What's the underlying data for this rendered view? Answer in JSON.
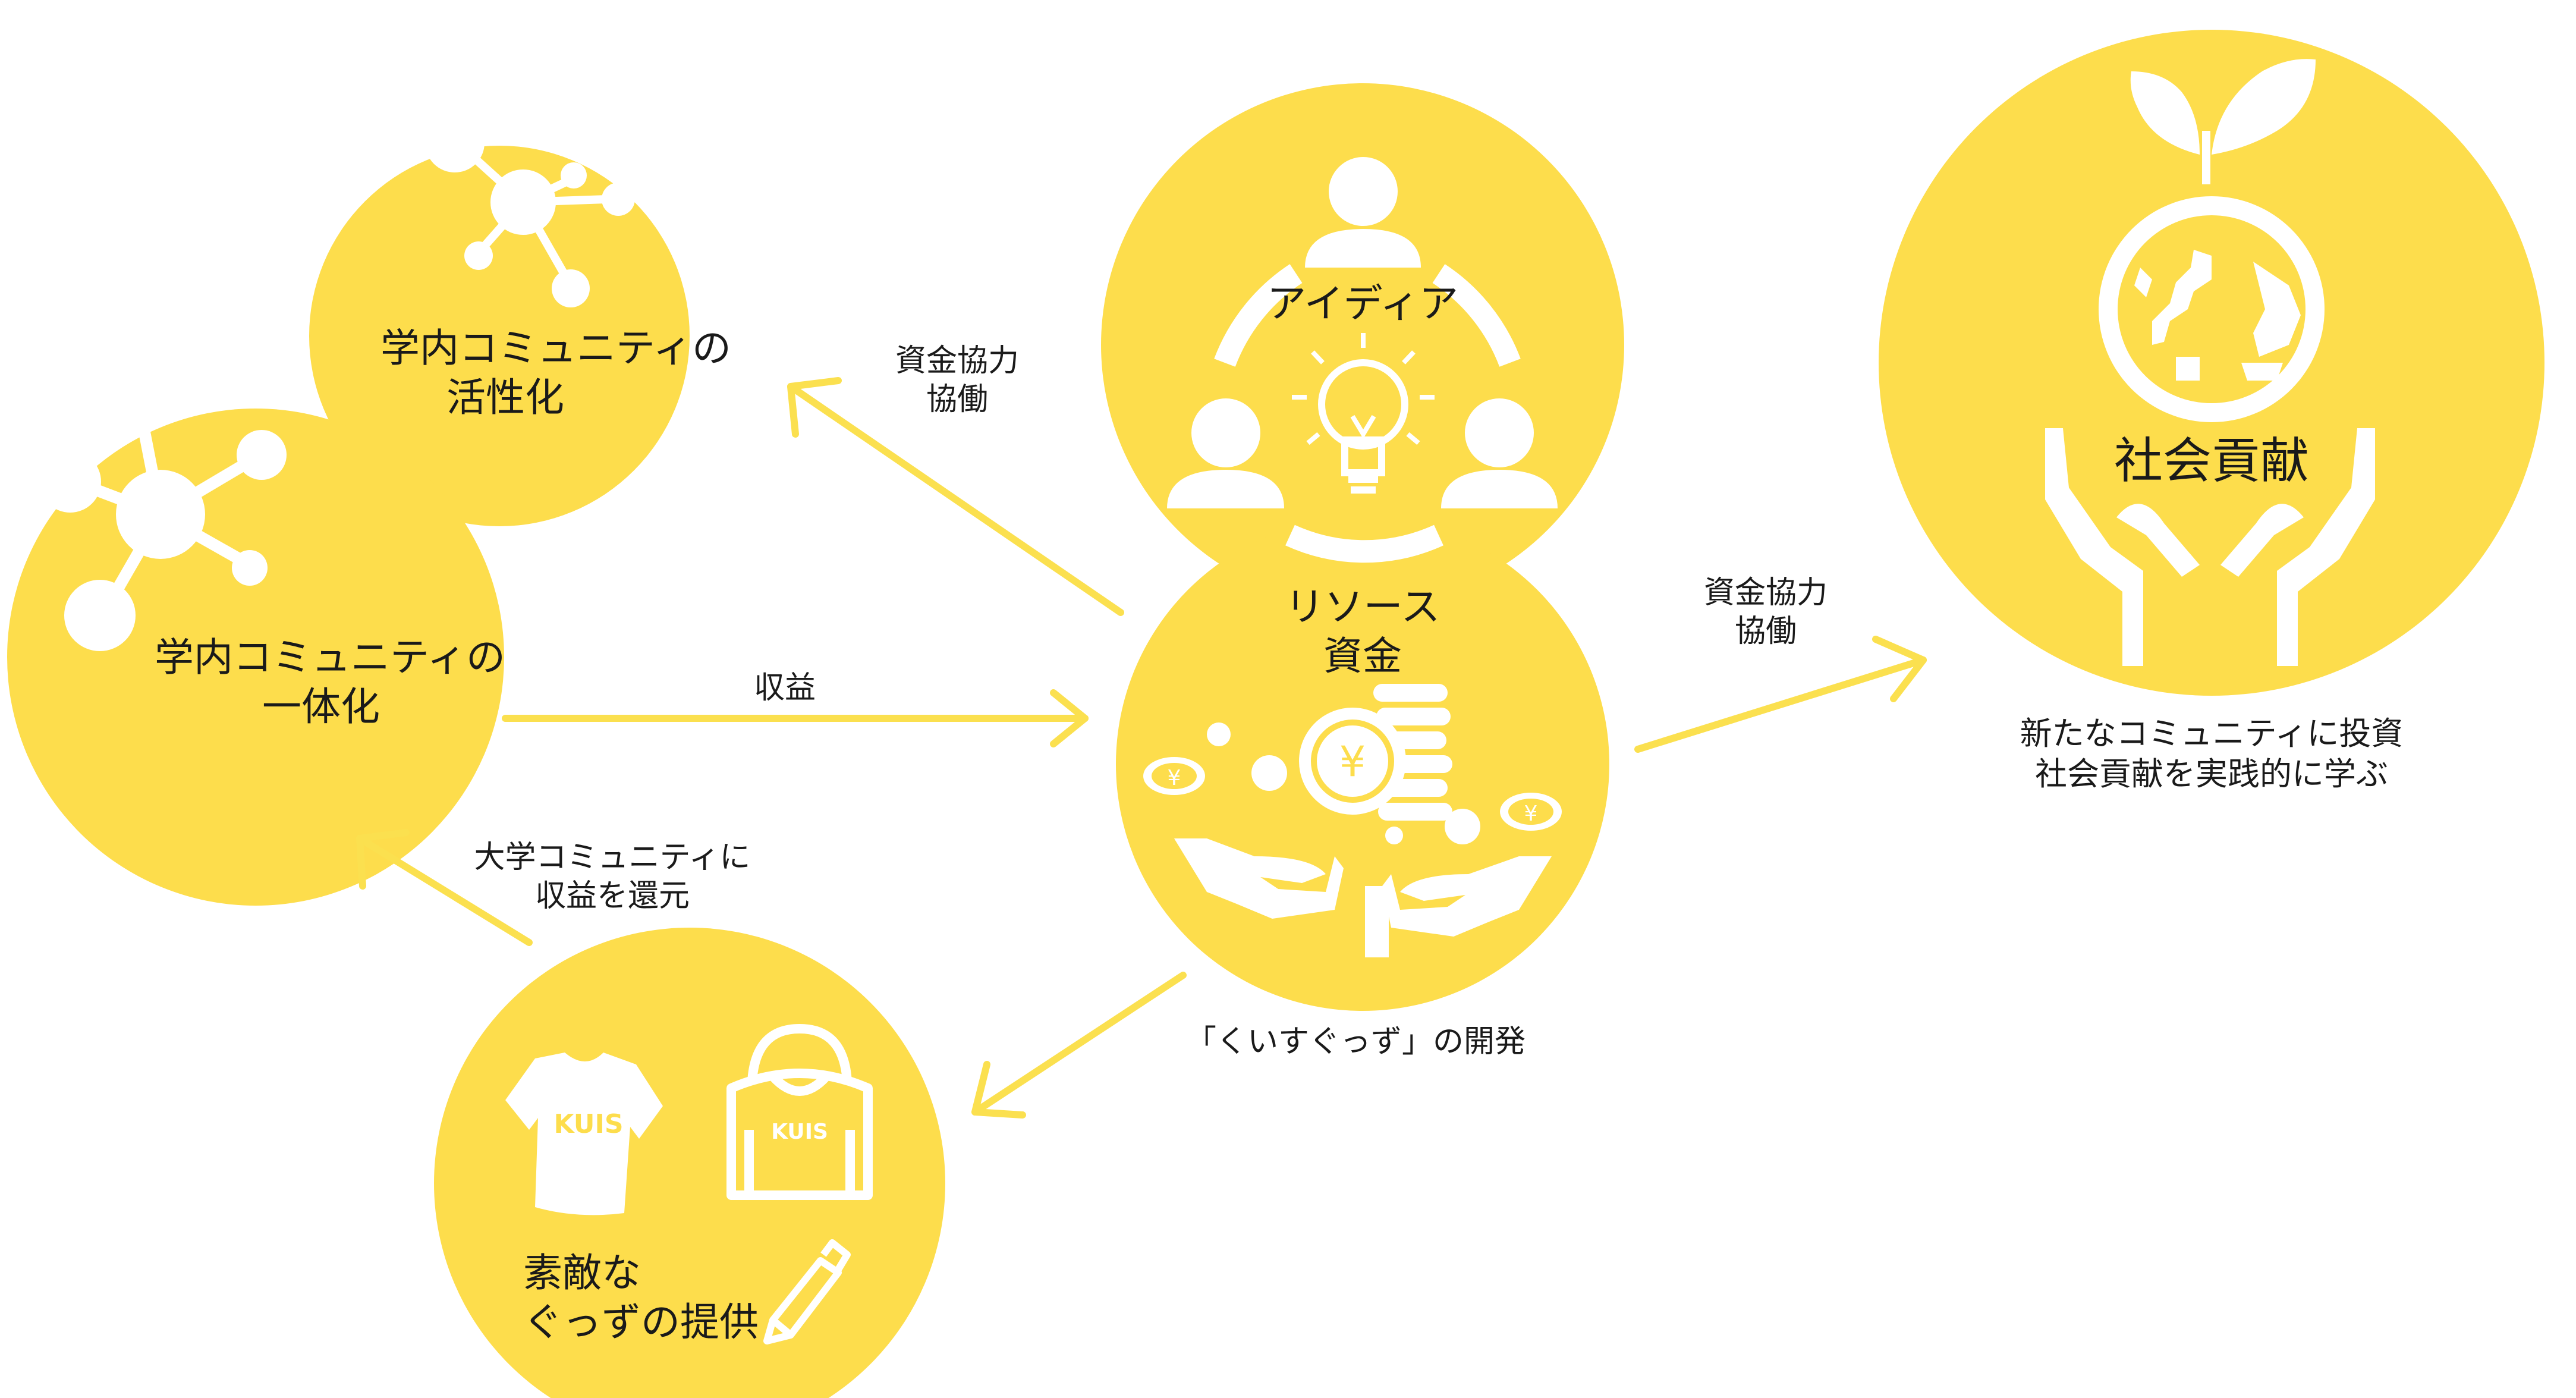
{
  "colors": {
    "circle": "#fddd4c",
    "icon": "#ffffff",
    "arrow": "#fbe04f",
    "text": "#1a1a1a"
  },
  "nodes": {
    "activation": {
      "line1": "学内コミュニティの",
      "line2": "活性化",
      "icon": "molecule-network-icon"
    },
    "unity": {
      "line1": "学内コミュニティの",
      "line2": "一体化",
      "icon": "molecule-network-icon"
    },
    "ideas": {
      "label": "アイディア",
      "icons": [
        "person-icon",
        "lightbulb-icon",
        "cycle-arrows-icon"
      ]
    },
    "resources": {
      "line1": "リソース",
      "line2": "資金",
      "icons": [
        "coin-stack-icon",
        "yen-coin-icon",
        "giving-hands-icon"
      ]
    },
    "goods": {
      "line1": "素敵な",
      "line2": "ぐっずの提供",
      "tshirt_text": "KUIS",
      "hoodie_text": "KUIS",
      "icons": [
        "tshirt-icon",
        "hoodie-icon",
        "pen-icon"
      ]
    },
    "social": {
      "label": "社会貢献",
      "caption1": "新たなコミュニティに投資",
      "caption2": "社会貢献を実践的に学ぶ",
      "icons": [
        "globe-sprout-icon",
        "cupped-hands-icon"
      ]
    }
  },
  "edges": {
    "to_activation": {
      "line1": "資金協力",
      "line2": "協働"
    },
    "to_unity": {
      "label": "収益"
    },
    "to_social": {
      "line1": "資金協力",
      "line2": "協働"
    },
    "return_to_univ": {
      "line1": "大学コミュニティに",
      "line2": "収益を還元"
    },
    "development": {
      "label": "「くいすぐっず」の開発"
    }
  }
}
